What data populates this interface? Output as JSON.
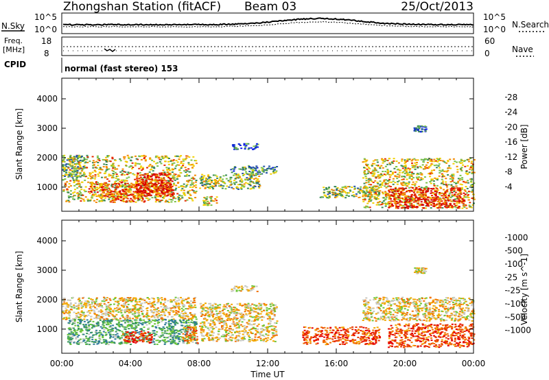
{
  "header": {
    "station": "Zhongshan Station (fitACF)",
    "beam": "Beam 03",
    "date": "25/Oct/2013"
  },
  "top_panels": {
    "nsky_label": "N.Sky",
    "nsearch_label": "N.Search",
    "freq_label_1": "Freq.",
    "freq_label_2": "[MHz]",
    "nave_label": "Nave",
    "cpid_label": "CPID",
    "cpid_text": "normal (fast stereo) 153",
    "noise_ticks": [
      "10^5",
      "10^0"
    ],
    "freq_ticks": [
      "18",
      "8"
    ],
    "nave_ticks": [
      "60",
      "0"
    ]
  },
  "chart_data": [
    {
      "type": "heatmap",
      "title": "",
      "xlabel": "Time UT",
      "ylabel": "Slant Range [km]",
      "colorbar_label": "Power [dB]",
      "x_ticks": [
        "00:00",
        "04:00",
        "08:00",
        "12:00",
        "16:00",
        "20:00",
        "00:00"
      ],
      "xlim_hours": [
        0,
        24
      ],
      "y_ticks": [
        1000,
        2000,
        3000,
        4000
      ],
      "ylim": [
        180,
        4700
      ],
      "colorbar_ticks": [
        "4",
        "8",
        "12",
        "16",
        "20",
        "24",
        "28"
      ],
      "colorbar_colors": [
        "#0a1ee6",
        "#2452a8",
        "#3b8a56",
        "#7cc24a",
        "#f2d000",
        "#f28a00",
        "#e62a00",
        "#d60000"
      ],
      "clusters": [
        {
          "x": [
            0.0,
            7.8
          ],
          "y": [
            500,
            2100
          ],
          "level": 0.55
        },
        {
          "x": [
            0.0,
            1.3
          ],
          "y": [
            1350,
            2100
          ],
          "level": 0.4
        },
        {
          "x": [
            1.5,
            6.5
          ],
          "y": [
            700,
            1200
          ],
          "level": 0.7
        },
        {
          "x": [
            4.3,
            6.4
          ],
          "y": [
            700,
            1500
          ],
          "level": 0.9
        },
        {
          "x": [
            2.8,
            4.8
          ],
          "y": [
            500,
            900
          ],
          "level": 0.75
        },
        {
          "x": [
            8.0,
            11.5
          ],
          "y": [
            950,
            1450
          ],
          "level": 0.45
        },
        {
          "x": [
            8.2,
            9.0
          ],
          "y": [
            400,
            700
          ],
          "level": 0.6
        },
        {
          "x": [
            9.8,
            12.5
          ],
          "y": [
            1450,
            1750
          ],
          "level": 0.3
        },
        {
          "x": [
            9.9,
            11.4
          ],
          "y": [
            2300,
            2500
          ],
          "level": 0.2
        },
        {
          "x": [
            15.0,
            18.5
          ],
          "y": [
            650,
            1050
          ],
          "level": 0.45
        },
        {
          "x": [
            17.5,
            24.0
          ],
          "y": [
            300,
            2000
          ],
          "level": 0.55
        },
        {
          "x": [
            19.0,
            23.5
          ],
          "y": [
            300,
            1000
          ],
          "level": 0.85
        },
        {
          "x": [
            20.5,
            21.2
          ],
          "y": [
            2900,
            3100
          ],
          "level": 0.15
        }
      ]
    },
    {
      "type": "heatmap",
      "title": "",
      "xlabel": "Time UT",
      "ylabel": "Slant Range [km]",
      "colorbar_label": "Velocity [m s^-1]",
      "x_ticks": [
        "00:00",
        "04:00",
        "08:00",
        "12:00",
        "16:00",
        "20:00",
        "00:00"
      ],
      "xlim_hours": [
        0,
        24
      ],
      "y_ticks": [
        1000,
        2000,
        3000,
        4000
      ],
      "ylim": [
        180,
        4700
      ],
      "colorbar_ticks": [
        "1000",
        "500",
        "100",
        "25",
        "-25",
        "-100",
        "-500",
        "-1000"
      ],
      "colorbar_colors": [
        "#1a3fb8",
        "#2f7a9a",
        "#3a9a5a",
        "#6ec63a",
        "#c8c8c0",
        "#f2a800",
        "#f27000",
        "#e63000",
        "#e60000"
      ],
      "clusters": [
        {
          "x": [
            0.0,
            7.8
          ],
          "y": [
            1350,
            2100
          ],
          "level": 0.45
        },
        {
          "x": [
            0.3,
            7.8
          ],
          "y": [
            500,
            1350
          ],
          "level": 0.7
        },
        {
          "x": [
            3.5,
            5.2
          ],
          "y": [
            550,
            950
          ],
          "level": 0.15
        },
        {
          "x": [
            7.0,
            7.9
          ],
          "y": [
            500,
            1100
          ],
          "level": 0.3
        },
        {
          "x": [
            8.0,
            12.5
          ],
          "y": [
            600,
            1900
          ],
          "level": 0.45
        },
        {
          "x": [
            9.8,
            11.4
          ],
          "y": [
            2300,
            2500
          ],
          "level": 0.45
        },
        {
          "x": [
            14.0,
            18.5
          ],
          "y": [
            500,
            1100
          ],
          "level": 0.2
        },
        {
          "x": [
            17.5,
            24.0
          ],
          "y": [
            1300,
            2100
          ],
          "level": 0.45
        },
        {
          "x": [
            19.0,
            24.0
          ],
          "y": [
            400,
            1200
          ],
          "level": 0.2
        },
        {
          "x": [
            20.5,
            21.2
          ],
          "y": [
            2900,
            3100
          ],
          "level": 0.45
        }
      ]
    }
  ],
  "footer": {
    "xlabel": "Time UT"
  }
}
